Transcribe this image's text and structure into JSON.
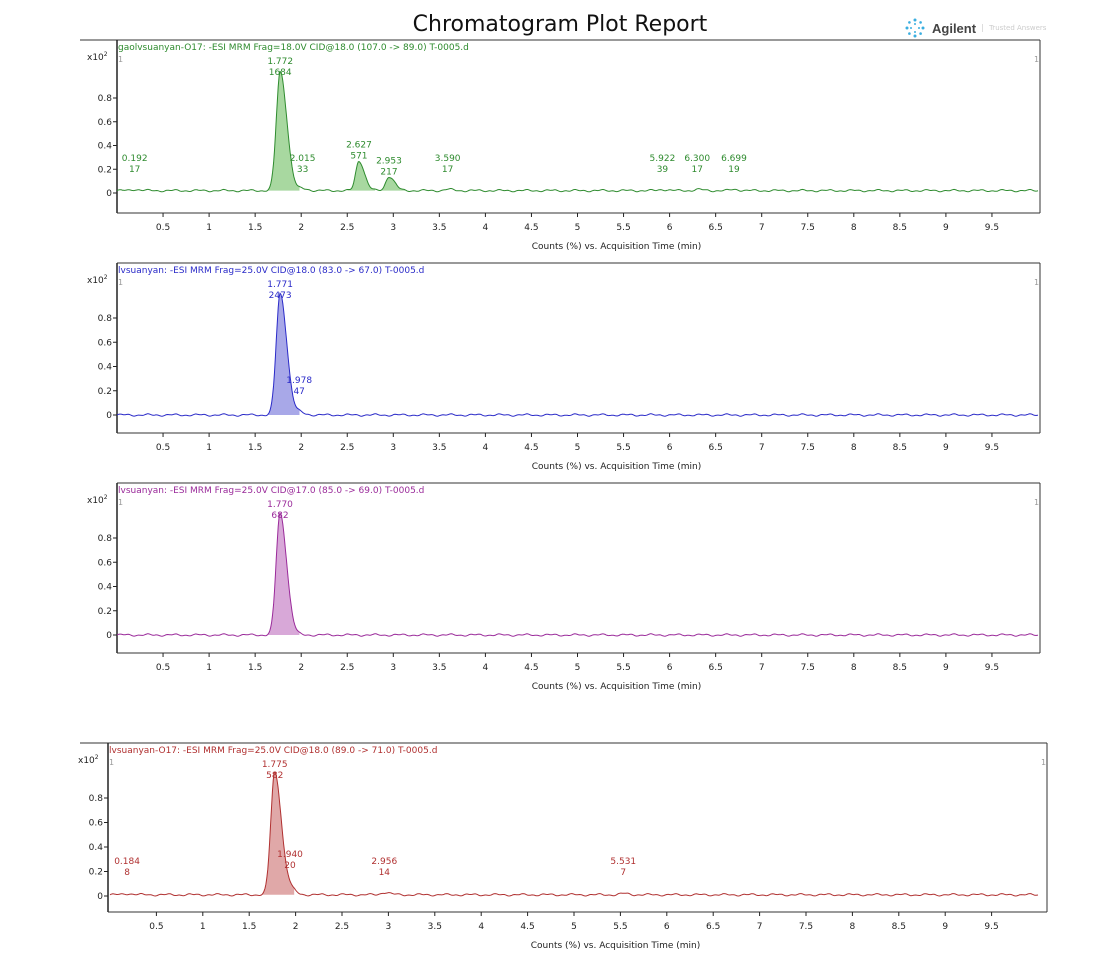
{
  "report_title": "Chromatogram Plot Report",
  "logo": {
    "brand": "Agilent",
    "tagline": "Trusted Answers",
    "icon": "agilent-spark-icon"
  },
  "chart_data": [
    {
      "type": "line",
      "title": "gaolvsuanyan-O17: -ESI MRM Frag=18.0V CID@18.0 (107.0 -> 89.0) T-0005.d",
      "color": "#2e8b2e",
      "fill": "#a8d8a0",
      "y_multiplier": "x10",
      "y_multiplier_exp": "2",
      "xlabel": "Counts (%) vs. Acquisition Time (min)",
      "xlim": [
        0,
        10
      ],
      "ylim": [
        -0.05,
        1.0
      ],
      "xticks": [
        "0.5",
        "1",
        "1.5",
        "2",
        "2.5",
        "3",
        "3.5",
        "4",
        "4.5",
        "5",
        "5.5",
        "6",
        "6.5",
        "7",
        "7.5",
        "8",
        "8.5",
        "9",
        "9.5"
      ],
      "yticks": [
        "0",
        "0.2",
        "0.4",
        "0.6",
        "0.8"
      ],
      "corner_marker": "1",
      "peaks": [
        {
          "rt": "0.192",
          "label": "17",
          "height": 0.01
        },
        {
          "rt": "1.772",
          "label": "1684",
          "height": 1.0
        },
        {
          "rt": "2.015",
          "label": "33",
          "height": 0.015
        },
        {
          "rt": "2.627",
          "label": "571",
          "height": 0.25
        },
        {
          "rt": "2.953",
          "label": "217",
          "height": 0.12
        },
        {
          "rt": "3.590",
          "label": "17",
          "height": 0.01
        },
        {
          "rt": "5.922",
          "label": "39",
          "height": 0.01
        },
        {
          "rt": "6.300",
          "label": "17",
          "height": 0.01
        },
        {
          "rt": "6.699",
          "label": "19",
          "height": 0.01
        }
      ],
      "baseline": 0.02
    },
    {
      "type": "line",
      "title": "lvsuanyan: -ESI MRM Frag=25.0V CID@18.0 (83.0 -> 67.0) T-0005.d",
      "color": "#2a2ac8",
      "fill": "#a8a8e8",
      "y_multiplier": "x10",
      "y_multiplier_exp": "2",
      "xlabel": "Counts (%) vs. Acquisition Time (min)",
      "xlim": [
        0,
        10
      ],
      "ylim": [
        -0.05,
        1.0
      ],
      "xticks": [
        "0.5",
        "1",
        "1.5",
        "2",
        "2.5",
        "3",
        "3.5",
        "4",
        "4.5",
        "5",
        "5.5",
        "6",
        "6.5",
        "7",
        "7.5",
        "8",
        "8.5",
        "9",
        "9.5"
      ],
      "yticks": [
        "0",
        "0.2",
        "0.4",
        "0.6",
        "0.8"
      ],
      "corner_marker": "1",
      "peaks": [
        {
          "rt": "1.771",
          "label": "2473",
          "height": 1.0
        },
        {
          "rt": "1.978",
          "label": "47",
          "height": 0.02
        }
      ],
      "baseline": 0.0
    },
    {
      "type": "line",
      "title": "lvsuanyan: -ESI MRM Frag=25.0V CID@17.0 (85.0 -> 69.0) T-0005.d",
      "color": "#9a2a9a",
      "fill": "#d8a8d8",
      "y_multiplier": "x10",
      "y_multiplier_exp": "2",
      "xlabel": "Counts (%) vs. Acquisition Time (min)",
      "xlim": [
        0,
        10
      ],
      "ylim": [
        -0.05,
        1.0
      ],
      "xticks": [
        "0.5",
        "1",
        "1.5",
        "2",
        "2.5",
        "3",
        "3.5",
        "4",
        "4.5",
        "5",
        "5.5",
        "6",
        "6.5",
        "7",
        "7.5",
        "8",
        "8.5",
        "9",
        "9.5"
      ],
      "yticks": [
        "0",
        "0.2",
        "0.4",
        "0.6",
        "0.8"
      ],
      "corner_marker": "1",
      "peaks": [
        {
          "rt": "1.770",
          "label": "682",
          "height": 1.0
        }
      ],
      "baseline": 0.0
    },
    {
      "type": "line",
      "title": "lvsuanyan-O17: -ESI MRM Frag=25.0V CID@18.0 (89.0 -> 71.0) T-0005.d",
      "color": "#b03030",
      "fill": "#e0a8a8",
      "y_multiplier": "x10",
      "y_multiplier_exp": "2",
      "xlabel": "Counts (%) vs. Acquisition Time (min)",
      "xlim": [
        0,
        10
      ],
      "ylim": [
        -0.05,
        1.0
      ],
      "xticks": [
        "0.5",
        "1",
        "1.5",
        "2",
        "2.5",
        "3",
        "3.5",
        "4",
        "4.5",
        "5",
        "5.5",
        "6",
        "6.5",
        "7",
        "7.5",
        "8",
        "8.5",
        "9",
        "9.5"
      ],
      "yticks": [
        "0",
        "0.2",
        "0.4",
        "0.6",
        "0.8"
      ],
      "corner_marker": "1",
      "peaks": [
        {
          "rt": "0.184",
          "label": "8",
          "height": 0.01
        },
        {
          "rt": "1.775",
          "label": "582",
          "height": 1.0
        },
        {
          "rt": "1.940",
          "label": "20",
          "height": 0.04
        },
        {
          "rt": "2.956",
          "label": "14",
          "height": 0.02
        },
        {
          "rt": "5.531",
          "label": "7",
          "height": 0.01
        }
      ],
      "baseline": 0.01
    }
  ]
}
